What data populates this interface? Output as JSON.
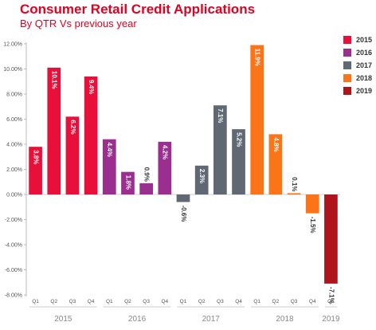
{
  "chart_data": {
    "type": "bar",
    "title": "Consumer Retail Credit Applications",
    "subtitle": "By QTR  Vs previous year",
    "ylim": [
      -8,
      12
    ],
    "y_ticks": [
      "12.00%",
      "10.00%",
      "8.00%",
      "6.00%",
      "4.00%",
      "2.00%",
      "0.00%",
      "-2.00%",
      "-4.00%",
      "-6.00%",
      "-8.00%"
    ],
    "y_tick_values": [
      12,
      10,
      8,
      6,
      4,
      2,
      0,
      -2,
      -4,
      -6,
      -8
    ],
    "grid": false,
    "legend": {
      "position": "right",
      "entries": [
        {
          "label": "2015",
          "color": "#e8103a"
        },
        {
          "label": "2016",
          "color": "#9b2f8f"
        },
        {
          "label": "2017",
          "color": "#5f6873"
        },
        {
          "label": "2018",
          "color": "#fb7417"
        },
        {
          "label": "2019",
          "color": "#b0141b"
        }
      ]
    },
    "groups": [
      {
        "year": "2015",
        "color": "#e8103a",
        "bars": [
          {
            "q": "Q1",
            "value": 3.8,
            "label": "3.8%"
          },
          {
            "q": "Q2",
            "value": 10.1,
            "label": "10.1%"
          },
          {
            "q": "Q3",
            "value": 6.2,
            "label": "6.2%"
          },
          {
            "q": "Q4",
            "value": 9.4,
            "label": "9.4%"
          }
        ]
      },
      {
        "year": "2016",
        "color": "#9b2f8f",
        "bars": [
          {
            "q": "Q1",
            "value": 4.4,
            "label": "4.4%"
          },
          {
            "q": "Q2",
            "value": 1.8,
            "label": "1.8%"
          },
          {
            "q": "Q3",
            "value": 0.9,
            "label": "0.9%"
          },
          {
            "q": "Q4",
            "value": 4.2,
            "label": "4.2%"
          }
        ]
      },
      {
        "year": "2017",
        "color": "#5f6873",
        "bars": [
          {
            "q": "Q1",
            "value": -0.6,
            "label": "-0.6%"
          },
          {
            "q": "Q2",
            "value": 2.3,
            "label": "2.3%"
          },
          {
            "q": "Q3",
            "value": 7.1,
            "label": "7.1%"
          },
          {
            "q": "Q4",
            "value": 5.2,
            "label": "5.2%"
          }
        ]
      },
      {
        "year": "2018",
        "color": "#fb7417",
        "bars": [
          {
            "q": "Q1",
            "value": 11.9,
            "label": "11.9%"
          },
          {
            "q": "Q2",
            "value": 4.8,
            "label": "4.8%"
          },
          {
            "q": "Q3",
            "value": 0.1,
            "label": "0.1%"
          },
          {
            "q": "Q4",
            "value": -1.5,
            "label": "-1.5%"
          }
        ]
      },
      {
        "year": "2019",
        "color": "#b0141b",
        "bars": [
          {
            "q": "Q1",
            "value": -7.1,
            "label": "-7.1%"
          }
        ]
      }
    ]
  }
}
